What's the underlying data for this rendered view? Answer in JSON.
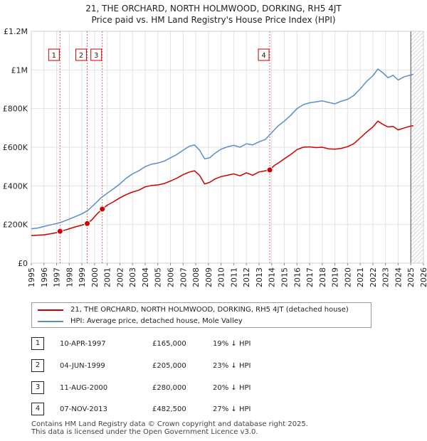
{
  "header": {
    "title_line1": "21, THE ORCHARD, NORTH HOLMWOOD, DORKING, RH5 4JT",
    "title_line2": "Price paid vs. HM Land Registry's House Price Index (HPI)"
  },
  "chart_data": {
    "type": "line",
    "title": "21, THE ORCHARD, NORTH HOLMWOOD, DORKING, RH5 4JT — Price paid vs. HM Land Registry's House Price Index (HPI)",
    "xlim": [
      1995,
      2026
    ],
    "ylim": [
      0,
      1200000
    ],
    "x_ticks": [
      1995,
      1996,
      1997,
      1998,
      1999,
      2000,
      2001,
      2002,
      2003,
      2004,
      2005,
      2006,
      2007,
      2008,
      2009,
      2010,
      2011,
      2012,
      2013,
      2014,
      2015,
      2016,
      2017,
      2018,
      2019,
      2020,
      2021,
      2022,
      2023,
      2024,
      2025,
      2026
    ],
    "y_ticks": [
      {
        "value": 0,
        "label": "£0"
      },
      {
        "value": 200000,
        "label": "£200K"
      },
      {
        "value": 400000,
        "label": "£400K"
      },
      {
        "value": 600000,
        "label": "£600K"
      },
      {
        "value": 800000,
        "label": "£800K"
      },
      {
        "value": 1000000,
        "label": "£1M"
      },
      {
        "value": 1200000,
        "label": "£1.2M"
      }
    ],
    "grid": true,
    "forecast_from": 2025.0,
    "series": [
      {
        "name": "21, THE ORCHARD, NORTH HOLMWOOD, DORKING, RH5 4JT (detached house)",
        "color": "#cc0000",
        "x": [
          1995.0,
          1995.5,
          1996.0,
          1996.5,
          1997.0,
          1997.27,
          1997.7,
          1998.0,
          1998.5,
          1999.0,
          1999.42,
          1999.8,
          2000.2,
          2000.61,
          2001.0,
          2001.5,
          2002.0,
          2002.5,
          2003.0,
          2003.5,
          2004.0,
          2004.5,
          2005.0,
          2005.5,
          2006.0,
          2006.5,
          2007.0,
          2007.5,
          2007.9,
          2008.3,
          2008.7,
          2009.1,
          2009.5,
          2010.0,
          2010.5,
          2011.0,
          2011.5,
          2012.0,
          2012.5,
          2013.0,
          2013.5,
          2013.85,
          2014.2,
          2014.6,
          2015.0,
          2015.5,
          2016.0,
          2016.5,
          2017.0,
          2017.5,
          2018.0,
          2018.5,
          2019.0,
          2019.5,
          2020.0,
          2020.5,
          2021.0,
          2021.5,
          2022.0,
          2022.4,
          2022.8,
          2023.2,
          2023.6,
          2024.0,
          2024.5,
          2024.9,
          2025.2
        ],
        "y": [
          143000,
          145000,
          147000,
          152000,
          158000,
          165000,
          172000,
          178000,
          188000,
          197000,
          205000,
          225000,
          255000,
          280000,
          300000,
          318000,
          338000,
          355000,
          368000,
          378000,
          395000,
          402000,
          405000,
          412000,
          425000,
          440000,
          458000,
          472000,
          478000,
          455000,
          410000,
          418000,
          435000,
          448000,
          455000,
          462000,
          452000,
          468000,
          455000,
          472000,
          478000,
          482500,
          505000,
          522000,
          540000,
          562000,
          588000,
          600000,
          602000,
          598000,
          600000,
          592000,
          590000,
          594000,
          603000,
          618000,
          648000,
          678000,
          705000,
          735000,
          718000,
          705000,
          708000,
          690000,
          700000,
          708000,
          712000
        ]
      },
      {
        "name": "HPI: Average price, detached house, Mole Valley",
        "color": "#5b8ec7",
        "x": [
          1995.0,
          1995.5,
          1996.0,
          1996.5,
          1997.0,
          1997.5,
          1998.0,
          1998.5,
          1999.0,
          1999.5,
          2000.0,
          2000.5,
          2001.0,
          2001.5,
          2002.0,
          2002.5,
          2003.0,
          2003.5,
          2004.0,
          2004.5,
          2005.0,
          2005.5,
          2006.0,
          2006.5,
          2007.0,
          2007.5,
          2007.9,
          2008.3,
          2008.7,
          2009.1,
          2009.5,
          2010.0,
          2010.5,
          2011.0,
          2011.5,
          2012.0,
          2012.5,
          2013.0,
          2013.5,
          2014.0,
          2014.5,
          2015.0,
          2015.5,
          2016.0,
          2016.5,
          2017.0,
          2017.5,
          2018.0,
          2018.5,
          2019.0,
          2019.5,
          2020.0,
          2020.5,
          2021.0,
          2021.5,
          2022.0,
          2022.4,
          2022.8,
          2023.2,
          2023.6,
          2024.0,
          2024.5,
          2024.9,
          2025.2
        ],
        "y": [
          178000,
          182000,
          190000,
          198000,
          205000,
          215000,
          228000,
          242000,
          255000,
          275000,
          305000,
          338000,
          362000,
          385000,
          410000,
          440000,
          462000,
          478000,
          500000,
          512000,
          518000,
          528000,
          545000,
          562000,
          585000,
          605000,
          612000,
          585000,
          540000,
          545000,
          568000,
          590000,
          602000,
          610000,
          600000,
          618000,
          612000,
          628000,
          640000,
          675000,
          710000,
          735000,
          765000,
          800000,
          820000,
          830000,
          835000,
          840000,
          832000,
          825000,
          838000,
          848000,
          868000,
          902000,
          940000,
          970000,
          1005000,
          985000,
          960000,
          972000,
          948000,
          965000,
          972000,
          978000
        ]
      }
    ],
    "sales": [
      {
        "id": "1",
        "x": 1997.27,
        "y": 165000
      },
      {
        "id": "2",
        "x": 1999.42,
        "y": 205000
      },
      {
        "id": "3",
        "x": 2000.61,
        "y": 280000
      },
      {
        "id": "4",
        "x": 2013.85,
        "y": 482500
      }
    ]
  },
  "legend": {
    "items": [
      {
        "label": "21, THE ORCHARD, NORTH HOLMWOOD, DORKING, RH5 4JT (detached house)",
        "color": "#cc0000"
      },
      {
        "label": "HPI: Average price, detached house, Mole Valley",
        "color": "#5b8ec7"
      }
    ]
  },
  "sales_table": [
    {
      "num": "1",
      "date": "10-APR-1997",
      "price": "£165,000",
      "hpi": "19% ↓ HPI"
    },
    {
      "num": "2",
      "date": "04-JUN-1999",
      "price": "£205,000",
      "hpi": "23% ↓ HPI"
    },
    {
      "num": "3",
      "date": "11-AUG-2000",
      "price": "£280,000",
      "hpi": "20% ↓ HPI"
    },
    {
      "num": "4",
      "date": "07-NOV-2013",
      "price": "£482,500",
      "hpi": "27% ↓ HPI"
    }
  ],
  "footer": {
    "line1": "Contains HM Land Registry data © Crown copyright and database right 2025.",
    "line2": "This data is licensed under the Open Government Licence v3.0."
  }
}
